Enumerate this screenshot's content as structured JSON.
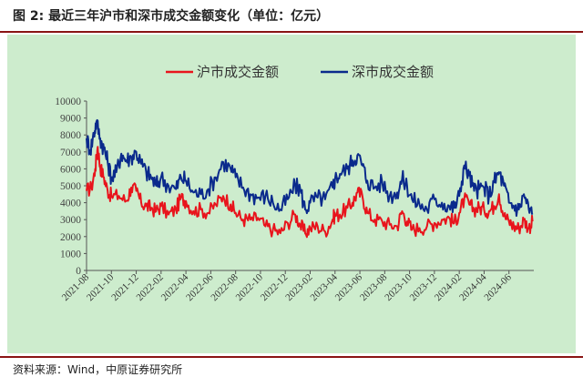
{
  "figure": {
    "title": "图 2:  最近三年沪市和深市成交金额变化（单位：亿元）",
    "source": "资料来源：Wind，中原证券研究所"
  },
  "colors": {
    "sh": "#e8141c",
    "sz": "#0a2a8c",
    "rule": "#8a1414",
    "bg": "#cdeccd"
  },
  "chart_data": {
    "type": "line",
    "title": "",
    "xlabel": "",
    "ylabel": "",
    "ylim": [
      0,
      10000
    ],
    "yticks": [
      "0",
      "1000",
      "2000",
      "3000",
      "4000",
      "5000",
      "6000",
      "7000",
      "8000",
      "9000",
      "10000"
    ],
    "xticks": [
      "2021-08",
      "2021-10",
      "2021-12",
      "2022-02",
      "2022-04",
      "2022-06",
      "2022-08",
      "2022-10",
      "2022-12",
      "2023-02",
      "2023-04",
      "2023-06",
      "2023-08",
      "2023-10",
      "2023-12",
      "2024-02",
      "2024-04",
      "2024-06"
    ],
    "series": [
      {
        "name": "沪市成交金额",
        "points": [
          [
            0,
            4700
          ],
          [
            0.2,
            4900
          ],
          [
            0.35,
            6000
          ],
          [
            0.45,
            7300
          ],
          [
            0.55,
            6100
          ],
          [
            0.7,
            5500
          ],
          [
            0.85,
            4700
          ],
          [
            1.0,
            4400
          ],
          [
            1.3,
            4400
          ],
          [
            1.6,
            4100
          ],
          [
            1.8,
            4900
          ],
          [
            2.0,
            4700
          ],
          [
            2.2,
            4000
          ],
          [
            2.4,
            3800
          ],
          [
            2.6,
            3700
          ],
          [
            2.8,
            3500
          ],
          [
            3.0,
            3800
          ],
          [
            3.3,
            3300
          ],
          [
            3.6,
            3600
          ],
          [
            3.8,
            4300
          ],
          [
            4.0,
            4100
          ],
          [
            4.3,
            3500
          ],
          [
            4.6,
            3600
          ],
          [
            4.9,
            3400
          ],
          [
            5.2,
            3900
          ],
          [
            5.5,
            4400
          ],
          [
            5.8,
            3900
          ],
          [
            6.0,
            3400
          ],
          [
            6.3,
            3000
          ],
          [
            6.6,
            3000
          ],
          [
            6.9,
            3100
          ],
          [
            7.2,
            2600
          ],
          [
            7.5,
            2400
          ],
          [
            7.8,
            2200
          ],
          [
            8.1,
            2800
          ],
          [
            8.4,
            3300
          ],
          [
            8.6,
            2700
          ],
          [
            8.8,
            2200
          ],
          [
            9.0,
            2500
          ],
          [
            9.3,
            2600
          ],
          [
            9.6,
            2300
          ],
          [
            9.9,
            3000
          ],
          [
            10.0,
            3300
          ],
          [
            10.2,
            3300
          ],
          [
            10.5,
            3700
          ],
          [
            10.7,
            4000
          ],
          [
            10.9,
            4600
          ],
          [
            11.1,
            4400
          ],
          [
            11.3,
            3400
          ],
          [
            11.6,
            3000
          ],
          [
            11.9,
            2900
          ],
          [
            12.2,
            2700
          ],
          [
            12.5,
            2600
          ],
          [
            12.7,
            3500
          ],
          [
            12.9,
            2900
          ],
          [
            13.1,
            2400
          ],
          [
            13.4,
            2500
          ],
          [
            13.7,
            2600
          ],
          [
            14.0,
            2800
          ],
          [
            14.3,
            3000
          ],
          [
            14.6,
            3100
          ],
          [
            14.8,
            2800
          ],
          [
            15.0,
            3400
          ],
          [
            15.2,
            4200
          ],
          [
            15.4,
            3900
          ],
          [
            15.6,
            3600
          ],
          [
            15.8,
            3700
          ],
          [
            16.0,
            3600
          ],
          [
            16.2,
            3500
          ],
          [
            16.4,
            3800
          ],
          [
            16.6,
            4500
          ],
          [
            16.8,
            3200
          ],
          [
            17.0,
            2900
          ],
          [
            17.2,
            2600
          ],
          [
            17.4,
            2500
          ],
          [
            17.6,
            3000
          ],
          [
            17.8,
            2500
          ],
          [
            17.95,
            2900
          ]
        ]
      },
      {
        "name": "深市成交金额",
        "points": [
          [
            0,
            7800
          ],
          [
            0.15,
            7100
          ],
          [
            0.3,
            8100
          ],
          [
            0.4,
            8800
          ],
          [
            0.55,
            7800
          ],
          [
            0.7,
            7200
          ],
          [
            0.85,
            6400
          ],
          [
            1.0,
            5500
          ],
          [
            1.2,
            5800
          ],
          [
            1.4,
            6900
          ],
          [
            1.6,
            6500
          ],
          [
            1.8,
            6700
          ],
          [
            2.0,
            7000
          ],
          [
            2.2,
            6300
          ],
          [
            2.4,
            5800
          ],
          [
            2.6,
            5500
          ],
          [
            2.8,
            5000
          ],
          [
            3.0,
            5500
          ],
          [
            3.3,
            5000
          ],
          [
            3.6,
            4800
          ],
          [
            3.8,
            5500
          ],
          [
            4.0,
            5300
          ],
          [
            4.3,
            4600
          ],
          [
            4.6,
            4500
          ],
          [
            4.9,
            4800
          ],
          [
            5.2,
            5500
          ],
          [
            5.5,
            6400
          ],
          [
            5.8,
            6000
          ],
          [
            6.0,
            5500
          ],
          [
            6.3,
            4900
          ],
          [
            6.6,
            4500
          ],
          [
            6.9,
            4300
          ],
          [
            7.2,
            4400
          ],
          [
            7.5,
            4000
          ],
          [
            7.8,
            3600
          ],
          [
            8.1,
            4200
          ],
          [
            8.4,
            5000
          ],
          [
            8.6,
            4800
          ],
          [
            8.8,
            3600
          ],
          [
            9.0,
            4000
          ],
          [
            9.3,
            4300
          ],
          [
            9.6,
            4200
          ],
          [
            9.9,
            4900
          ],
          [
            10.0,
            5400
          ],
          [
            10.2,
            5700
          ],
          [
            10.5,
            6000
          ],
          [
            10.7,
            6500
          ],
          [
            10.9,
            6800
          ],
          [
            11.1,
            6200
          ],
          [
            11.3,
            5300
          ],
          [
            11.6,
            4900
          ],
          [
            11.9,
            5200
          ],
          [
            12.2,
            4400
          ],
          [
            12.5,
            4600
          ],
          [
            12.7,
            5400
          ],
          [
            12.9,
            5000
          ],
          [
            13.1,
            4200
          ],
          [
            13.4,
            3900
          ],
          [
            13.7,
            3600
          ],
          [
            14.0,
            4200
          ],
          [
            14.3,
            4000
          ],
          [
            14.6,
            3800
          ],
          [
            14.8,
            3700
          ],
          [
            15.0,
            4400
          ],
          [
            15.2,
            6200
          ],
          [
            15.4,
            5600
          ],
          [
            15.6,
            4700
          ],
          [
            15.8,
            4800
          ],
          [
            16.0,
            4900
          ],
          [
            16.2,
            4400
          ],
          [
            16.4,
            5200
          ],
          [
            16.6,
            5800
          ],
          [
            16.8,
            5000
          ],
          [
            17.0,
            4000
          ],
          [
            17.2,
            3800
          ],
          [
            17.4,
            3600
          ],
          [
            17.6,
            4500
          ],
          [
            17.8,
            3600
          ],
          [
            17.95,
            3300
          ]
        ]
      }
    ]
  }
}
